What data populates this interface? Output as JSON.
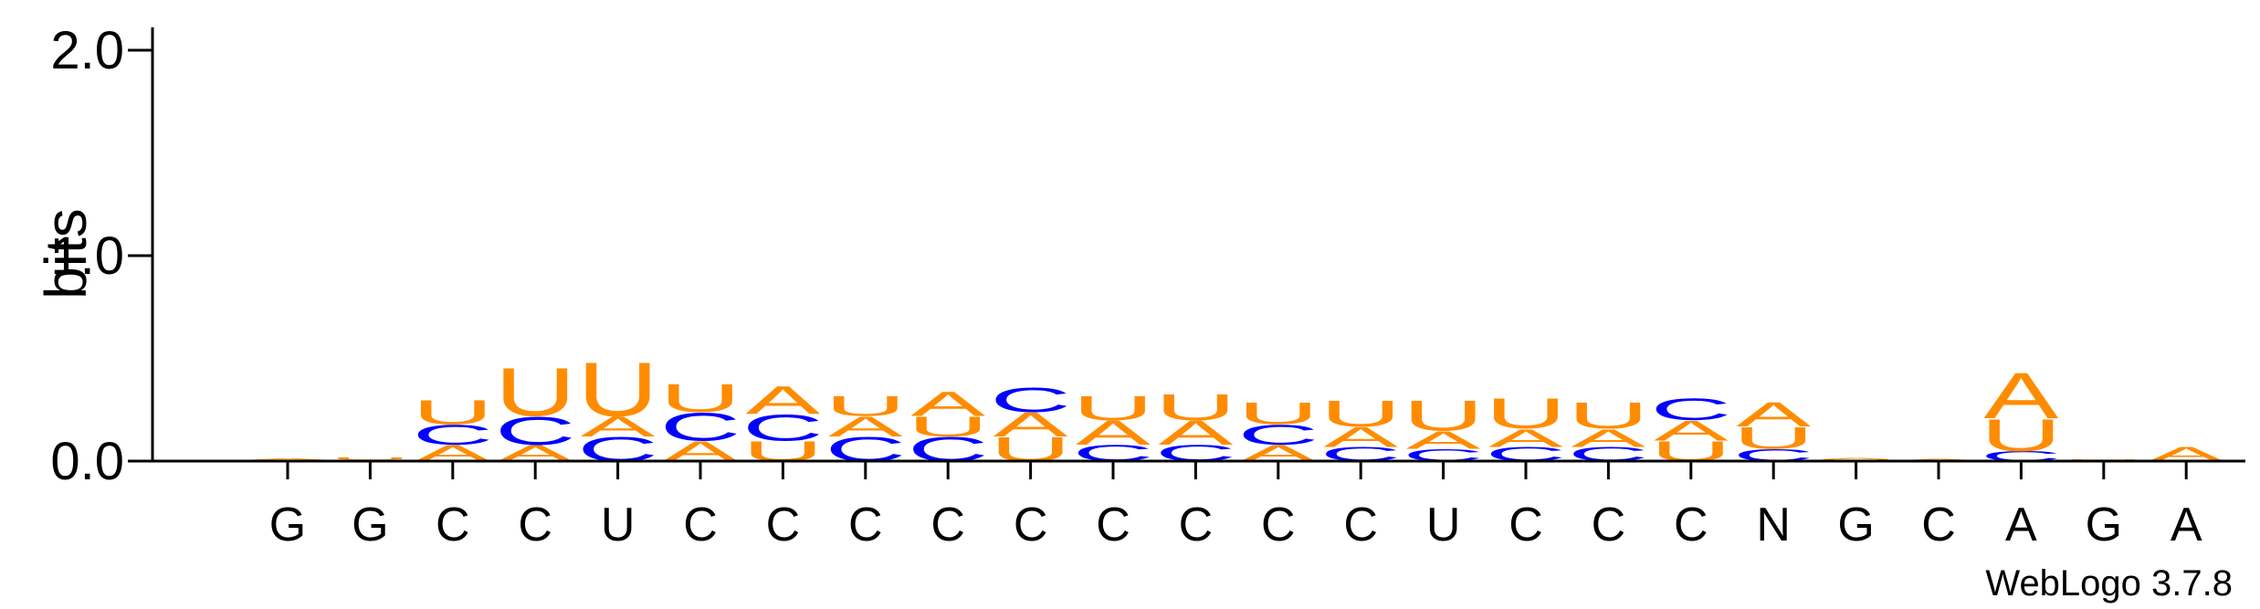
{
  "chart_data": {
    "type": "sequence-logo",
    "ylabel": "bits",
    "ylim": [
      0,
      2.0
    ],
    "yticks": [
      {
        "value": 0.0,
        "label": "0.0"
      },
      {
        "value": 1.0,
        "label": "1.0"
      },
      {
        "value": 2.0,
        "label": "2.0"
      }
    ],
    "x_tick_labels": [
      "G",
      "G",
      "C",
      "C",
      "U",
      "C",
      "C",
      "C",
      "C",
      "C",
      "C",
      "C",
      "C",
      "C",
      "U",
      "C",
      "C",
      "C",
      "N",
      "G",
      "C",
      "A",
      "G",
      "A"
    ],
    "colors": {
      "A": "#ff8c00",
      "U": "#ff8c00",
      "C": "#0000ff",
      "G": "#ff8c00"
    },
    "columns": [
      {
        "stack": [
          [
            "U",
            0.006
          ],
          [
            "A",
            0.006
          ]
        ]
      },
      {
        "stack": [
          [
            "C",
            0.006
          ],
          [
            "U",
            0.01
          ]
        ]
      },
      {
        "stack": [
          [
            "A",
            0.08
          ],
          [
            "C",
            0.1
          ],
          [
            "U",
            0.12
          ]
        ]
      },
      {
        "stack": [
          [
            "A",
            0.08
          ],
          [
            "C",
            0.14
          ],
          [
            "U",
            0.24
          ]
        ]
      },
      {
        "stack": [
          [
            "C",
            0.12
          ],
          [
            "A",
            0.1
          ],
          [
            "U",
            0.27
          ]
        ]
      },
      {
        "stack": [
          [
            "A",
            0.1
          ],
          [
            "C",
            0.14
          ],
          [
            "U",
            0.14
          ]
        ]
      },
      {
        "stack": [
          [
            "U",
            0.1
          ],
          [
            "C",
            0.13
          ],
          [
            "A",
            0.14
          ]
        ]
      },
      {
        "stack": [
          [
            "C",
            0.12
          ],
          [
            "A",
            0.1
          ],
          [
            "U",
            0.1
          ]
        ]
      },
      {
        "stack": [
          [
            "C",
            0.12
          ],
          [
            "U",
            0.1
          ],
          [
            "A",
            0.12
          ]
        ]
      },
      {
        "stack": [
          [
            "U",
            0.12
          ],
          [
            "A",
            0.12
          ],
          [
            "C",
            0.12
          ]
        ]
      },
      {
        "stack": [
          [
            "C",
            0.08
          ],
          [
            "A",
            0.12
          ],
          [
            "U",
            0.12
          ]
        ]
      },
      {
        "stack": [
          [
            "C",
            0.08
          ],
          [
            "A",
            0.12
          ],
          [
            "U",
            0.13
          ]
        ]
      },
      {
        "stack": [
          [
            "A",
            0.08
          ],
          [
            "C",
            0.1
          ],
          [
            "U",
            0.11
          ]
        ]
      },
      {
        "stack": [
          [
            "C",
            0.07
          ],
          [
            "A",
            0.1
          ],
          [
            "U",
            0.13
          ]
        ]
      },
      {
        "stack": [
          [
            "C",
            0.06
          ],
          [
            "A",
            0.09
          ],
          [
            "U",
            0.15
          ]
        ]
      },
      {
        "stack": [
          [
            "C",
            0.07
          ],
          [
            "A",
            0.09
          ],
          [
            "U",
            0.15
          ]
        ]
      },
      {
        "stack": [
          [
            "C",
            0.07
          ],
          [
            "A",
            0.09
          ],
          [
            "U",
            0.13
          ]
        ]
      },
      {
        "stack": [
          [
            "U",
            0.1
          ],
          [
            "A",
            0.1
          ],
          [
            "C",
            0.11
          ]
        ]
      },
      {
        "stack": [
          [
            "C",
            0.06
          ],
          [
            "U",
            0.11
          ],
          [
            "A",
            0.12
          ]
        ]
      },
      {
        "stack": [
          [
            "C",
            0.003
          ],
          [
            "U",
            0.005
          ],
          [
            "A",
            0.006
          ]
        ]
      },
      {
        "stack": [
          [
            "C",
            0.004
          ],
          [
            "A",
            0.006
          ]
        ]
      },
      {
        "stack": [
          [
            "C",
            0.05
          ],
          [
            "U",
            0.16
          ],
          [
            "A",
            0.23
          ]
        ]
      },
      {
        "stack": [
          [
            "C",
            0.006
          ],
          [
            "U",
            0.004
          ]
        ]
      },
      {
        "stack": [
          [
            "A",
            0.07
          ]
        ]
      }
    ]
  },
  "watermark": "WebLogo 3.7.8"
}
